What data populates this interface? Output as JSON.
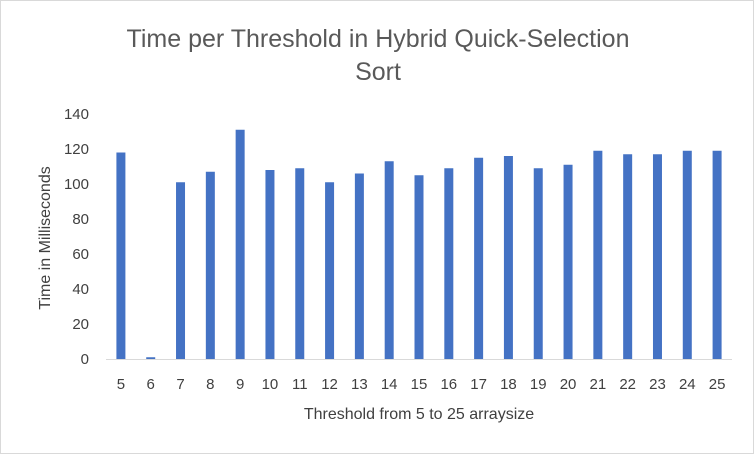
{
  "chart_data": {
    "type": "bar",
    "title_lines": [
      "Time per Threshold in Hybrid Quick-Selection",
      "Sort"
    ],
    "xlabel": "Threshold from 5 to 25 arraysize",
    "ylabel": "Time in Milliseconds",
    "ylim": [
      0,
      140
    ],
    "yticks": [
      0,
      20,
      40,
      60,
      80,
      100,
      120,
      140
    ],
    "grid": false,
    "legend": "none",
    "categories": [
      "5",
      "6",
      "7",
      "8",
      "9",
      "10",
      "11",
      "12",
      "13",
      "14",
      "15",
      "16",
      "17",
      "18",
      "19",
      "20",
      "21",
      "22",
      "23",
      "24",
      "25"
    ],
    "values": [
      118,
      1,
      101,
      107,
      131,
      108,
      109,
      101,
      106,
      113,
      105,
      109,
      115,
      116,
      109,
      111,
      119,
      117,
      117,
      119,
      119
    ],
    "bar_color": "#4472c4"
  }
}
